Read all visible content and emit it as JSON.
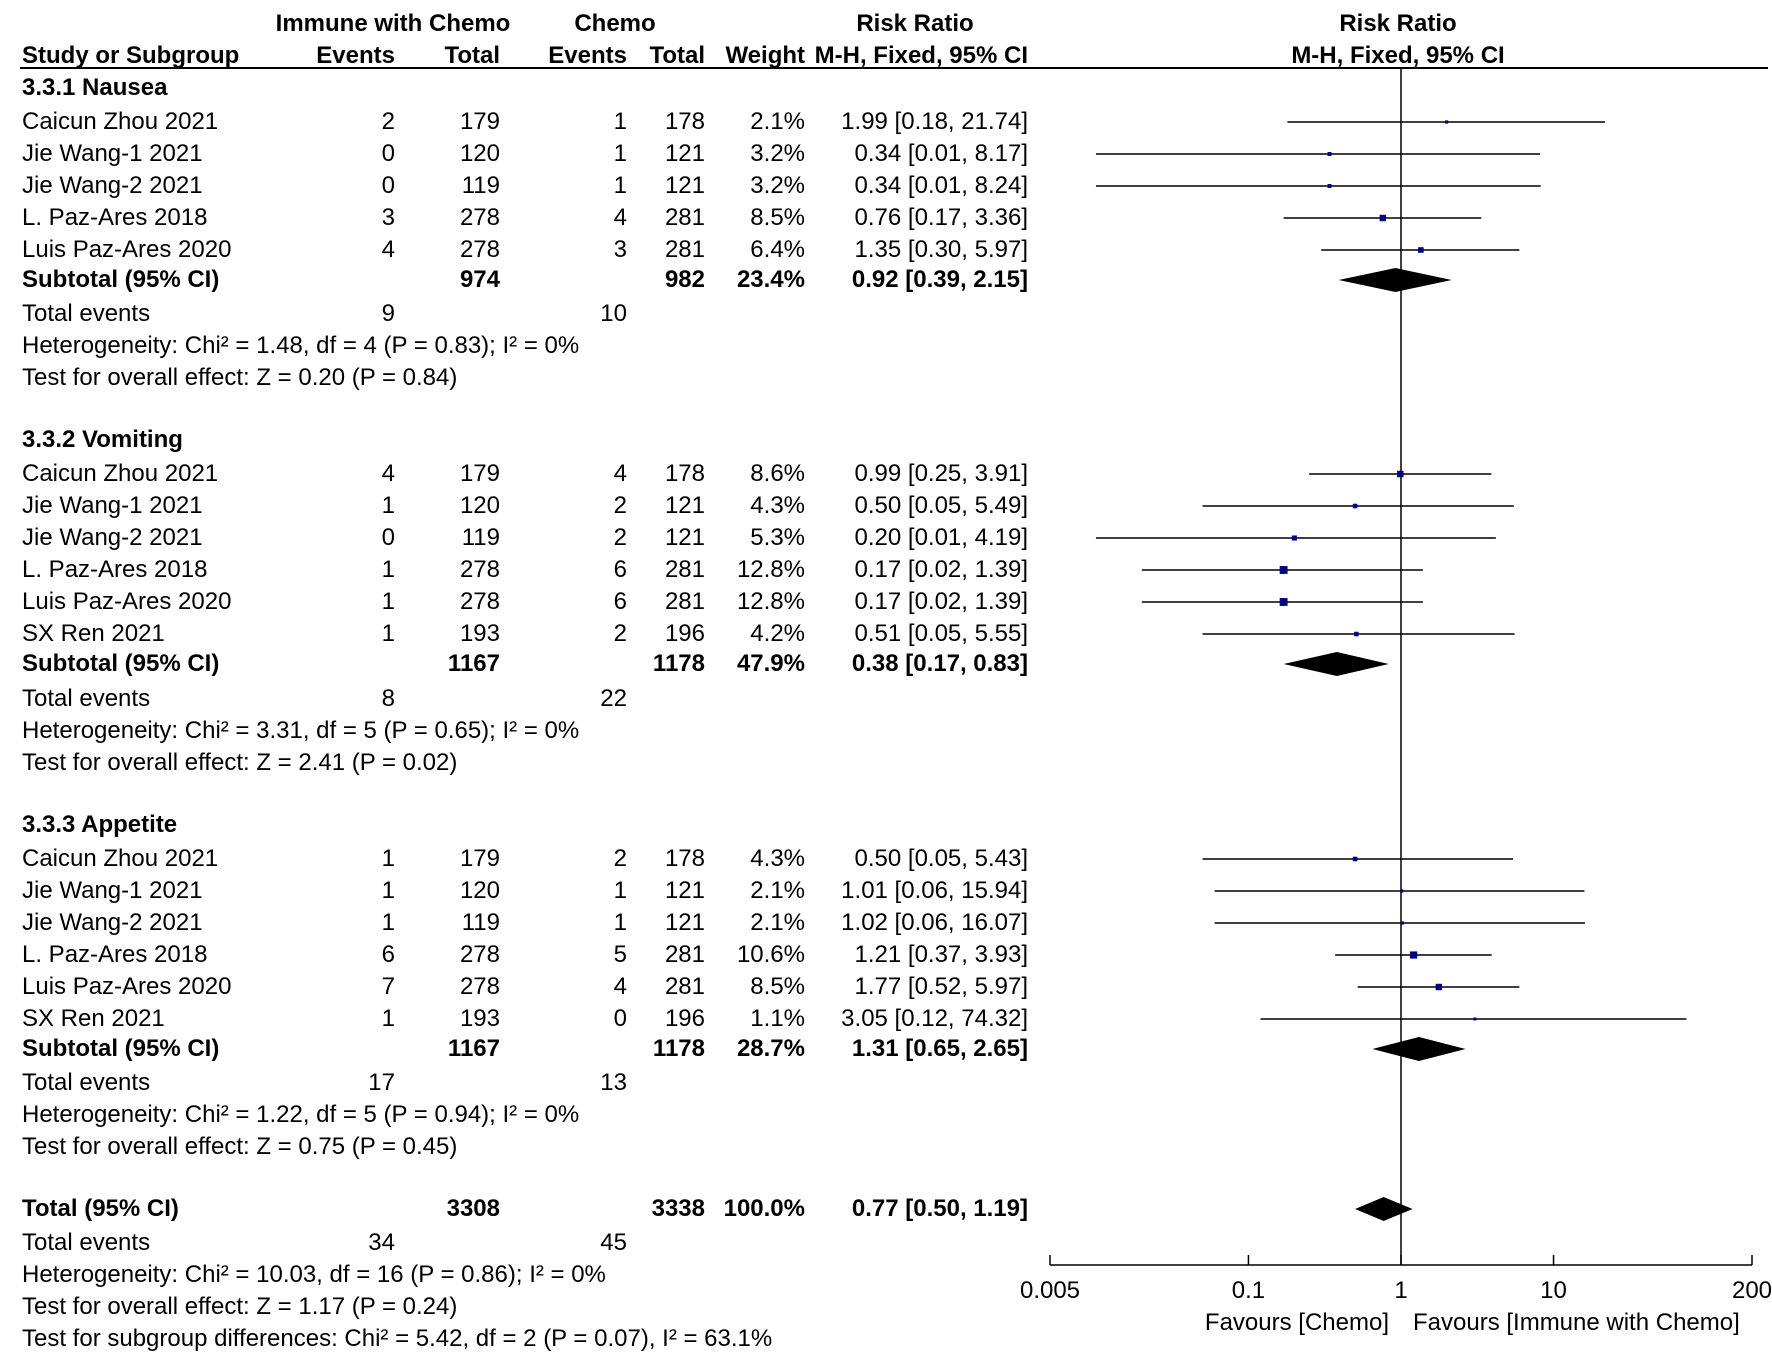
{
  "header": {
    "group1_label": "Immune with Chemo",
    "group2_label": "Chemo",
    "rr_label": "Risk Ratio",
    "plot_rr_label": "Risk Ratio",
    "col_study": "Study or Subgroup",
    "col_events1": "Events",
    "col_total1": "Total",
    "col_events2": "Events",
    "col_total2": "Total",
    "col_weight": "Weight",
    "col_method": "M-H, Fixed, 95% CI",
    "plot_method": "M-H, Fixed, 95% CI"
  },
  "subgroups": [
    {
      "title": "3.3.1 Nausea",
      "studies": [
        {
          "name": "Caicun Zhou 2021",
          "e1": "2",
          "t1": "179",
          "e2": "1",
          "t2": "178",
          "weight": "2.1%",
          "ci": "1.99 [0.18, 21.74]"
        },
        {
          "name": "Jie Wang-1 2021",
          "e1": "0",
          "t1": "120",
          "e2": "1",
          "t2": "121",
          "weight": "3.2%",
          "ci": "0.34 [0.01, 8.17]"
        },
        {
          "name": "Jie Wang-2 2021",
          "e1": "0",
          "t1": "119",
          "e2": "1",
          "t2": "121",
          "weight": "3.2%",
          "ci": "0.34 [0.01, 8.24]"
        },
        {
          "name": "L. Paz-Ares 2018",
          "e1": "3",
          "t1": "278",
          "e2": "4",
          "t2": "281",
          "weight": "8.5%",
          "ci": "0.76 [0.17, 3.36]"
        },
        {
          "name": "Luis Paz-Ares 2020",
          "e1": "4",
          "t1": "278",
          "e2": "3",
          "t2": "281",
          "weight": "6.4%",
          "ci": "1.35 [0.30, 5.97]"
        }
      ],
      "subtotal": {
        "label": "Subtotal (95% CI)",
        "t1": "974",
        "t2": "982",
        "weight": "23.4%",
        "ci": "0.92 [0.39, 2.15]"
      },
      "total_events": {
        "label": "Total events",
        "e1": "9",
        "e2": "10"
      },
      "heterogeneity": "Heterogeneity: Chi² = 1.48, df = 4 (P = 0.83); I² = 0%",
      "overall": "Test for overall effect: Z = 0.20 (P = 0.84)"
    },
    {
      "title": "3.3.2 Vomiting",
      "studies": [
        {
          "name": "Caicun Zhou 2021",
          "e1": "4",
          "t1": "179",
          "e2": "4",
          "t2": "178",
          "weight": "8.6%",
          "ci": "0.99 [0.25, 3.91]"
        },
        {
          "name": "Jie Wang-1 2021",
          "e1": "1",
          "t1": "120",
          "e2": "2",
          "t2": "121",
          "weight": "4.3%",
          "ci": "0.50 [0.05, 5.49]"
        },
        {
          "name": "Jie Wang-2 2021",
          "e1": "0",
          "t1": "119",
          "e2": "2",
          "t2": "121",
          "weight": "5.3%",
          "ci": "0.20 [0.01, 4.19]"
        },
        {
          "name": "L. Paz-Ares 2018",
          "e1": "1",
          "t1": "278",
          "e2": "6",
          "t2": "281",
          "weight": "12.8%",
          "ci": "0.17 [0.02, 1.39]"
        },
        {
          "name": "Luis Paz-Ares 2020",
          "e1": "1",
          "t1": "278",
          "e2": "6",
          "t2": "281",
          "weight": "12.8%",
          "ci": "0.17 [0.02, 1.39]"
        },
        {
          "name": "SX Ren 2021",
          "e1": "1",
          "t1": "193",
          "e2": "2",
          "t2": "196",
          "weight": "4.2%",
          "ci": "0.51 [0.05, 5.55]"
        }
      ],
      "subtotal": {
        "label": "Subtotal (95% CI)",
        "t1": "1167",
        "t2": "1178",
        "weight": "47.9%",
        "ci": "0.38 [0.17, 0.83]"
      },
      "total_events": {
        "label": "Total events",
        "e1": "8",
        "e2": "22"
      },
      "heterogeneity": "Heterogeneity: Chi² = 3.31, df = 5 (P = 0.65); I² = 0%",
      "overall": "Test for overall effect: Z = 2.41 (P = 0.02)"
    },
    {
      "title": "3.3.3 Appetite",
      "studies": [
        {
          "name": "Caicun Zhou 2021",
          "e1": "1",
          "t1": "179",
          "e2": "2",
          "t2": "178",
          "weight": "4.3%",
          "ci": "0.50 [0.05, 5.43]"
        },
        {
          "name": "Jie Wang-1 2021",
          "e1": "1",
          "t1": "120",
          "e2": "1",
          "t2": "121",
          "weight": "2.1%",
          "ci": "1.01 [0.06, 15.94]"
        },
        {
          "name": "Jie Wang-2 2021",
          "e1": "1",
          "t1": "119",
          "e2": "1",
          "t2": "121",
          "weight": "2.1%",
          "ci": "1.02 [0.06, 16.07]"
        },
        {
          "name": "L. Paz-Ares 2018",
          "e1": "6",
          "t1": "278",
          "e2": "5",
          "t2": "281",
          "weight": "10.6%",
          "ci": "1.21 [0.37, 3.93]"
        },
        {
          "name": "Luis Paz-Ares 2020",
          "e1": "7",
          "t1": "278",
          "e2": "4",
          "t2": "281",
          "weight": "8.5%",
          "ci": "1.77 [0.52, 5.97]"
        },
        {
          "name": "SX Ren 2021",
          "e1": "1",
          "t1": "193",
          "e2": "0",
          "t2": "196",
          "weight": "1.1%",
          "ci": "3.05 [0.12, 74.32]"
        }
      ],
      "subtotal": {
        "label": "Subtotal (95% CI)",
        "t1": "1167",
        "t2": "1178",
        "weight": "28.7%",
        "ci": "1.31 [0.65, 2.65]"
      },
      "total_events": {
        "label": "Total events",
        "e1": "17",
        "e2": "13"
      },
      "heterogeneity": "Heterogeneity: Chi² = 1.22, df = 5 (P = 0.94); I² = 0%",
      "overall": "Test for overall effect: Z = 0.75 (P = 0.45)"
    }
  ],
  "total": {
    "label": "Total (95% CI)",
    "t1": "3308",
    "t2": "3338",
    "weight": "100.0%",
    "ci": "0.77 [0.50, 1.19]",
    "events_label": "Total events",
    "e1": "34",
    "e2": "45",
    "heterogeneity": "Heterogeneity: Chi² = 10.03, df = 16 (P = 0.86); I² = 0%",
    "overall": "Test for overall effect: Z = 1.17 (P = 0.24)",
    "subgroup_diff": "Test for subgroup differences: Chi² = 5.42, df = 2 (P = 0.07), I² = 63.1%"
  },
  "axis": {
    "ticks": [
      "0.005",
      "0.1",
      "1",
      "10",
      "200"
    ],
    "favours_left": "Favours [Chemo]",
    "favours_right": "Favours [Immune with Chemo]"
  },
  "colors": {
    "marker": "#000080",
    "line": "#000000",
    "diamond": "#000000"
  },
  "chart_data": {
    "type": "forest",
    "scale": "log",
    "xlim": [
      0.005,
      200
    ],
    "xticks": [
      0.005,
      0.1,
      1,
      10,
      200
    ],
    "null_line": 1,
    "title": "Risk Ratio",
    "subtitle": "M-H, Fixed, 95% CI",
    "xlabel_left": "Favours [Chemo]",
    "xlabel_right": "Favours [Immune with Chemo]",
    "studies": [
      {
        "group": 0,
        "name": "Caicun Zhou 2021",
        "rr": 1.99,
        "lo": 0.18,
        "hi": 21.74,
        "weight": 2.1
      },
      {
        "group": 0,
        "name": "Jie Wang-1 2021",
        "rr": 0.34,
        "lo": 0.01,
        "hi": 8.17,
        "weight": 3.2
      },
      {
        "group": 0,
        "name": "Jie Wang-2 2021",
        "rr": 0.34,
        "lo": 0.01,
        "hi": 8.24,
        "weight": 3.2
      },
      {
        "group": 0,
        "name": "L. Paz-Ares 2018",
        "rr": 0.76,
        "lo": 0.17,
        "hi": 3.36,
        "weight": 8.5
      },
      {
        "group": 0,
        "name": "Luis Paz-Ares 2020",
        "rr": 1.35,
        "lo": 0.3,
        "hi": 5.97,
        "weight": 6.4
      },
      {
        "group": 1,
        "name": "Caicun Zhou 2021",
        "rr": 0.99,
        "lo": 0.25,
        "hi": 3.91,
        "weight": 8.6
      },
      {
        "group": 1,
        "name": "Jie Wang-1 2021",
        "rr": 0.5,
        "lo": 0.05,
        "hi": 5.49,
        "weight": 4.3
      },
      {
        "group": 1,
        "name": "Jie Wang-2 2021",
        "rr": 0.2,
        "lo": 0.01,
        "hi": 4.19,
        "weight": 5.3
      },
      {
        "group": 1,
        "name": "L. Paz-Ares 2018",
        "rr": 0.17,
        "lo": 0.02,
        "hi": 1.39,
        "weight": 12.8
      },
      {
        "group": 1,
        "name": "Luis Paz-Ares 2020",
        "rr": 0.17,
        "lo": 0.02,
        "hi": 1.39,
        "weight": 12.8
      },
      {
        "group": 1,
        "name": "SX Ren 2021",
        "rr": 0.51,
        "lo": 0.05,
        "hi": 5.55,
        "weight": 4.2
      },
      {
        "group": 2,
        "name": "Caicun Zhou 2021",
        "rr": 0.5,
        "lo": 0.05,
        "hi": 5.43,
        "weight": 4.3
      },
      {
        "group": 2,
        "name": "Jie Wang-1 2021",
        "rr": 1.01,
        "lo": 0.06,
        "hi": 15.94,
        "weight": 2.1
      },
      {
        "group": 2,
        "name": "Jie Wang-2 2021",
        "rr": 1.02,
        "lo": 0.06,
        "hi": 16.07,
        "weight": 2.1
      },
      {
        "group": 2,
        "name": "L. Paz-Ares 2018",
        "rr": 1.21,
        "lo": 0.37,
        "hi": 3.93,
        "weight": 10.6
      },
      {
        "group": 2,
        "name": "Luis Paz-Ares 2020",
        "rr": 1.77,
        "lo": 0.52,
        "hi": 5.97,
        "weight": 8.5
      },
      {
        "group": 2,
        "name": "SX Ren 2021",
        "rr": 3.05,
        "lo": 0.12,
        "hi": 74.32,
        "weight": 1.1
      }
    ],
    "subtotals": [
      {
        "name": "3.3.1 Nausea",
        "rr": 0.92,
        "lo": 0.39,
        "hi": 2.15
      },
      {
        "name": "3.3.2 Vomiting",
        "rr": 0.38,
        "lo": 0.17,
        "hi": 0.83
      },
      {
        "name": "3.3.3 Appetite",
        "rr": 1.31,
        "lo": 0.65,
        "hi": 2.65
      }
    ],
    "overall": {
      "rr": 0.77,
      "lo": 0.5,
      "hi": 1.19
    }
  }
}
